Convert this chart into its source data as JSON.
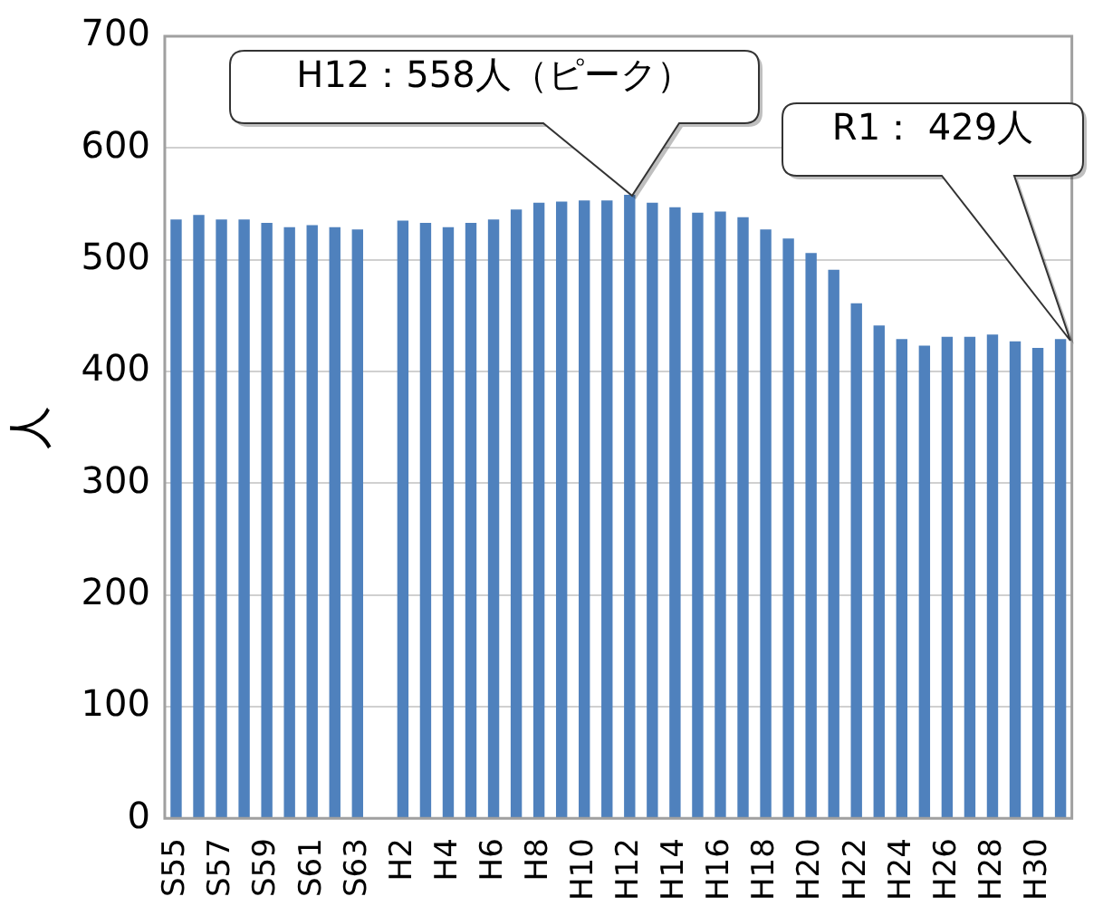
{
  "chart_data": {
    "type": "bar",
    "ylabel": "人",
    "categories": [
      "S55",
      null,
      "S57",
      null,
      "S59",
      null,
      "S61",
      null,
      "S63",
      null,
      "H2",
      null,
      "H4",
      null,
      "H6",
      null,
      "H8",
      null,
      "H10",
      null,
      "H12",
      null,
      "H14",
      null,
      "H16",
      null,
      "H18",
      null,
      "H20",
      null,
      "H22",
      null,
      "H24",
      null,
      "H26",
      null,
      "H28",
      null,
      "H30",
      null
    ],
    "values": [
      536,
      540,
      536,
      536,
      533,
      529,
      531,
      529,
      527,
      null,
      535,
      533,
      529,
      533,
      536,
      545,
      551,
      552,
      553,
      553,
      558,
      551,
      547,
      542,
      543,
      538,
      527,
      519,
      506,
      491,
      461,
      441,
      429,
      423,
      431,
      431,
      433,
      427,
      421,
      429
    ],
    "color": "#4f81bd",
    "ylim": [
      0,
      700
    ],
    "yticks": [
      0,
      100,
      200,
      300,
      400,
      500,
      600,
      700
    ],
    "grid": "y",
    "legend": false,
    "annotations": [
      "H12：558人（ピーク）",
      "R1： 429人"
    ]
  }
}
